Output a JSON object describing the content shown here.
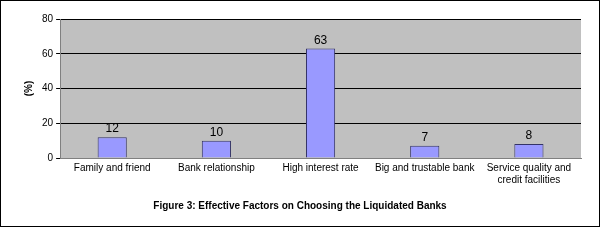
{
  "chart_data": {
    "type": "bar",
    "title": "Figure 3: Effective Factors on Choosing the Liquidated Banks",
    "y_label": "(%)",
    "categories": [
      "Family and friend",
      "Bank relationship",
      "High interest rate",
      "Big and trustable bank",
      "Service quality and credit facilities"
    ],
    "values": [
      12,
      10,
      63,
      7,
      8
    ],
    "color": "#9999ff",
    "ylim": [
      0,
      80
    ],
    "yticks": [
      0,
      20,
      40,
      60,
      80
    ],
    "grid": true,
    "data_labels": true
  }
}
